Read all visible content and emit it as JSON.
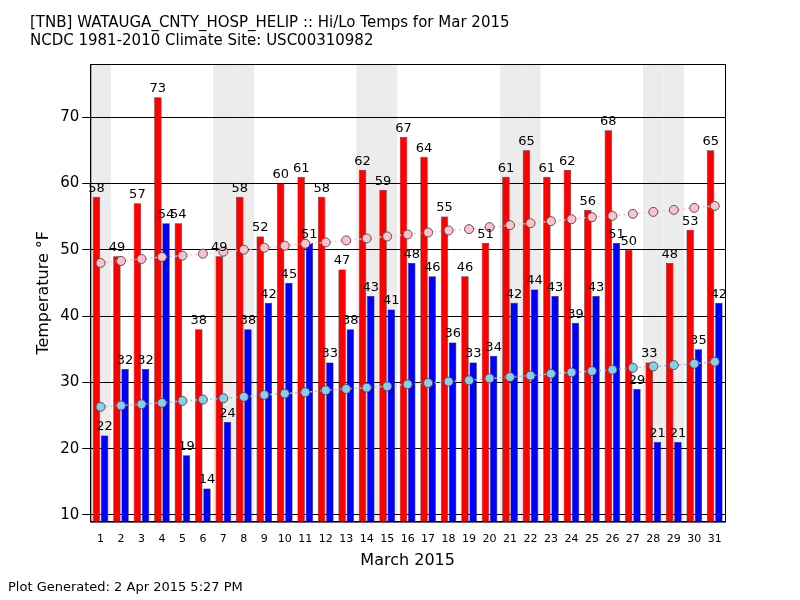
{
  "chart_data": {
    "type": "bar",
    "title": "[TNB] WATAUGA_CNTY_HOSP_HELIP :: Hi/Lo Temps for Mar 2015",
    "subtitle": "NCDC 1981-2010 Climate Site: USC00310982",
    "footer": "Plot Generated: 2 Apr 2015 5:27 PM",
    "x_label": "March 2015",
    "y_label": "Temperature °F",
    "categories": [
      "1",
      "2",
      "3",
      "4",
      "5",
      "6",
      "7",
      "8",
      "9",
      "10",
      "11",
      "12",
      "13",
      "14",
      "15",
      "16",
      "17",
      "18",
      "19",
      "20",
      "21",
      "22",
      "23",
      "24",
      "25",
      "26",
      "27",
      "28",
      "29",
      "30",
      "31"
    ],
    "shaded_categories": [
      "1",
      "7",
      "8",
      "14",
      "15",
      "21",
      "22",
      "28",
      "29"
    ],
    "series": [
      {
        "type": "bar",
        "color": "#ff0000",
        "data_labels": true,
        "values": [
          58,
          49,
          57,
          73,
          54,
          38,
          49,
          58,
          52,
          60,
          61,
          58,
          47,
          62,
          59,
          67,
          64,
          55,
          46,
          51,
          61,
          65,
          61,
          62,
          56,
          68,
          50,
          33,
          48,
          53,
          65
        ]
      },
      {
        "type": "bar",
        "color": "#0000ff",
        "data_labels": true,
        "values": [
          22,
          32,
          32,
          54,
          19,
          14,
          24,
          38,
          42,
          45,
          51,
          33,
          38,
          43,
          41,
          48,
          46,
          36,
          33,
          34,
          42,
          44,
          43,
          39,
          43,
          51,
          29,
          21,
          21,
          35,
          42
        ]
      },
      {
        "type": "line",
        "color": "#ffc0cb",
        "marker": "circle",
        "line_style": "dotted",
        "data_labels": false,
        "values": [
          48.0,
          48.3,
          48.6,
          48.9,
          49.1,
          49.4,
          49.7,
          50.0,
          50.3,
          50.6,
          50.9,
          51.1,
          51.4,
          51.7,
          52.0,
          52.3,
          52.6,
          52.9,
          53.1,
          53.4,
          53.7,
          54.0,
          54.3,
          54.6,
          54.9,
          55.1,
          55.4,
          55.7,
          56.0,
          56.3,
          56.6
        ]
      },
      {
        "type": "line",
        "color": "#87ceeb",
        "marker": "circle",
        "line_style": "dotted",
        "data_labels": false,
        "values": [
          26.3,
          26.5,
          26.7,
          26.9,
          27.2,
          27.4,
          27.6,
          27.8,
          28.1,
          28.3,
          28.5,
          28.8,
          29.0,
          29.2,
          29.4,
          29.7,
          29.9,
          30.1,
          30.3,
          30.6,
          30.8,
          31.0,
          31.3,
          31.5,
          31.7,
          31.9,
          32.2,
          32.4,
          32.6,
          32.8,
          33.1
        ]
      }
    ],
    "ylim": [
      9,
      78
    ],
    "yticks": [
      10,
      20,
      30,
      40,
      50,
      60,
      70
    ],
    "grid": "y"
  }
}
